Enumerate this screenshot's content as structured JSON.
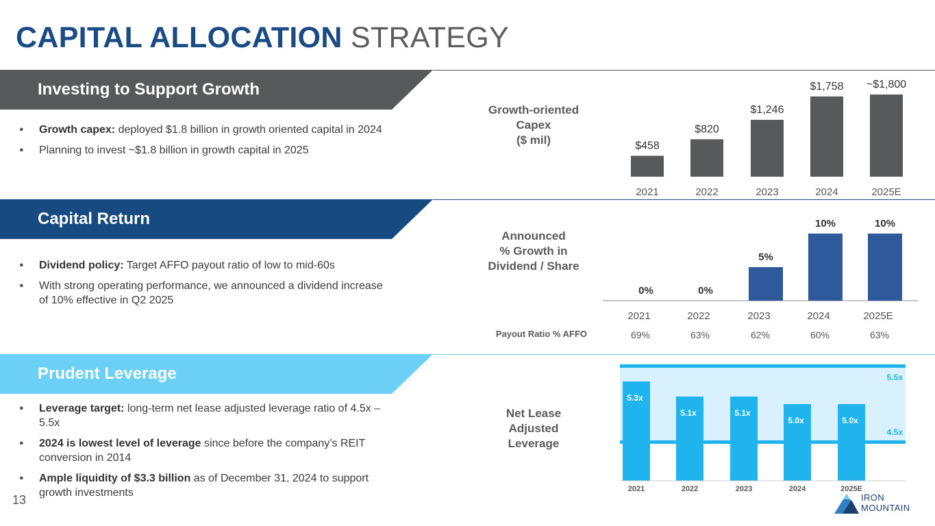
{
  "title": {
    "bold": "CAPITAL ALLOCATION",
    "light": "STRATEGY"
  },
  "page_number": "13",
  "colors": {
    "dark_grey": "#58595b",
    "navy": "#174a80",
    "light_blue": "#6ccff6",
    "bar_blue": "#2e5a9c",
    "cyan": "#1fb4ee"
  },
  "logo": {
    "line1": "IRON",
    "line2": "MOUNTAIN"
  },
  "sections": {
    "growth": {
      "label": "Investing to Support Growth",
      "bullets": [
        {
          "bold": "Growth capex:",
          "text": " deployed $1.8 billion in growth oriented capital in 2024"
        },
        {
          "bold": "",
          "text": "Planning to invest ~$1.8 billion in growth capital in 2025"
        }
      ]
    },
    "capital_return": {
      "label": "Capital Return",
      "bullets": [
        {
          "bold": "Dividend policy:",
          "text": " Target AFFO payout ratio of low to mid-60s"
        },
        {
          "bold": "",
          "text": "With strong operating performance, we announced a dividend increase of 10% effective in Q2 2025"
        }
      ]
    },
    "leverage": {
      "label": "Prudent Leverage",
      "bullets": [
        {
          "bold": "Leverage target:",
          "text": " long-term net lease adjusted leverage ratio of 4.5x – 5.5x"
        },
        {
          "bold": "2024 is lowest level of leverage",
          "text": " since before the company’s REIT conversion in 2014"
        },
        {
          "bold": "Ample liquidity of $3.3 billion",
          "text": " as of December 31, 2024 to support growth investments"
        }
      ]
    }
  },
  "chart_data": [
    {
      "type": "bar",
      "title": "Growth-oriented Capex ($ mil)",
      "title_lines": [
        "Growth-oriented",
        "Capex",
        "($ mil)"
      ],
      "categories": [
        "2021",
        "2022",
        "2023",
        "2024",
        "2025E"
      ],
      "values": [
        458,
        820,
        1246,
        1758,
        1800
      ],
      "data_labels": [
        "$458",
        "$820",
        "$1,246",
        "$1,758",
        "$1,800"
      ],
      "approx_prefix": "~",
      "ylim": [
        0,
        1800
      ]
    },
    {
      "type": "bar",
      "title": "Announced % Growth in Dividend / Share",
      "title_lines": [
        "Announced",
        "% Growth in",
        "Dividend / Share"
      ],
      "categories": [
        "2021",
        "2022",
        "2023",
        "2024",
        "2025E"
      ],
      "values": [
        0,
        0,
        5,
        10,
        10
      ],
      "data_labels": [
        "0%",
        "0%",
        "5%",
        "10%",
        "10%"
      ],
      "ylim": [
        0,
        10
      ],
      "payout_ratio_label": "Payout Ratio % AFFO",
      "payout_ratio": [
        "69%",
        "63%",
        "62%",
        "60%",
        "63%"
      ]
    },
    {
      "type": "bar",
      "title": "Net Lease Adjusted Leverage",
      "title_lines": [
        "Net Lease",
        "Adjusted",
        "Leverage"
      ],
      "categories": [
        "2021",
        "2022",
        "2023",
        "2024",
        "2025E"
      ],
      "values": [
        5.3,
        5.1,
        5.1,
        5.0,
        5.0
      ],
      "data_labels": [
        "5.3x",
        "5.1x",
        "5.1x",
        "5.0x",
        "5.0x"
      ],
      "target_range": [
        4.5,
        5.5
      ],
      "target_labels": [
        "4.5x",
        "5.5x"
      ]
    }
  ]
}
